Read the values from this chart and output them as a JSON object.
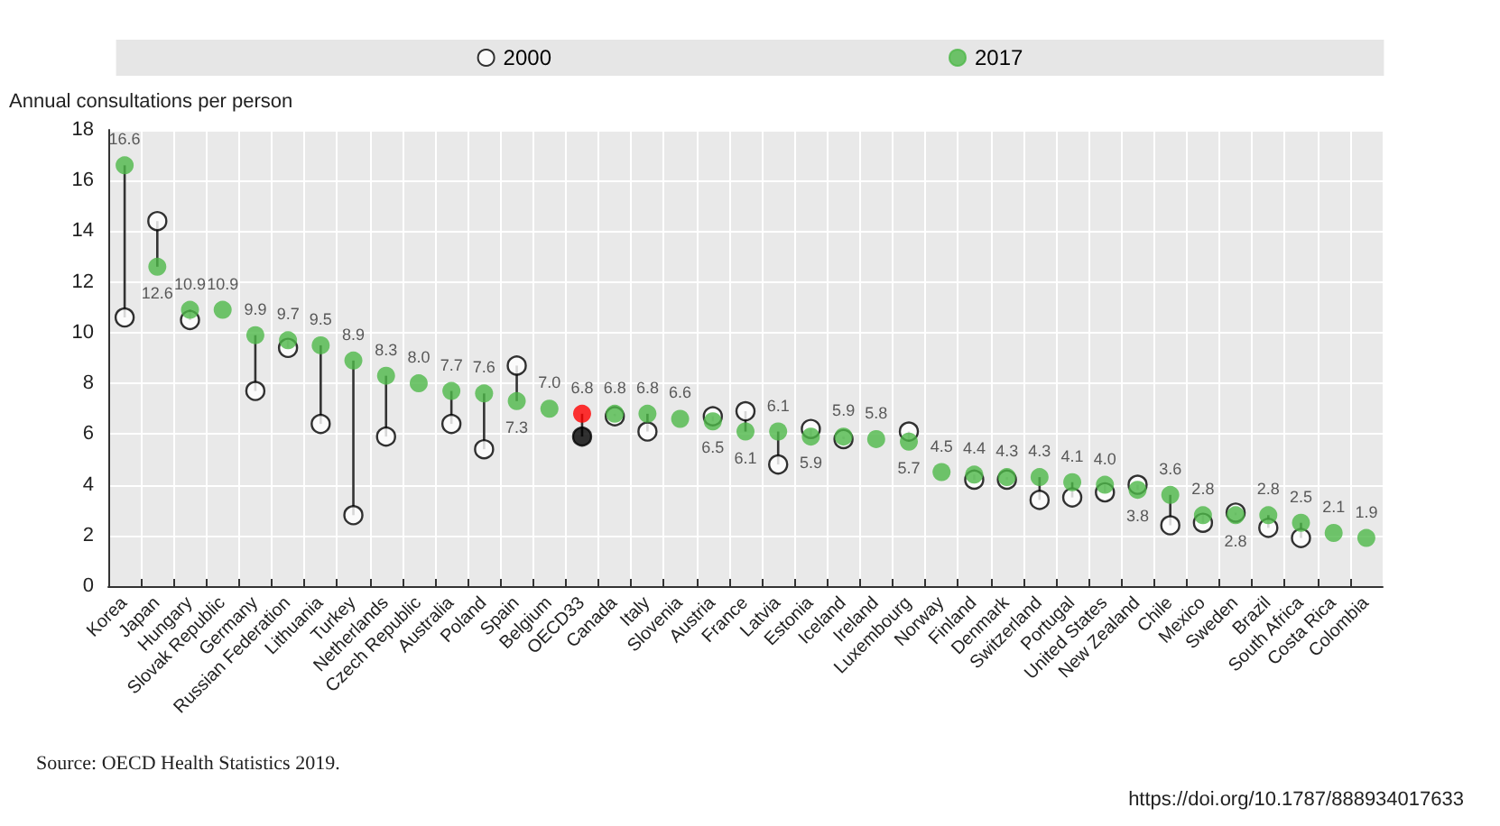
{
  "chart_data": {
    "type": "scatter",
    "ylabel": "Annual consultations per person",
    "categories": [
      "Korea",
      "Japan",
      "Hungary",
      "Slovak Republic",
      "Germany",
      "Russian Federation",
      "Lithuania",
      "Turkey",
      "Netherlands",
      "Czech Republic",
      "Australia",
      "Poland",
      "Spain",
      "Belgium",
      "OECD33",
      "Canada",
      "Italy",
      "Slovenia",
      "Austria",
      "France",
      "Latvia",
      "Estonia",
      "Iceland",
      "Ireland",
      "Luxembourg",
      "Norway",
      "Finland",
      "Denmark",
      "Switzerland",
      "Portugal",
      "United States",
      "New Zealand",
      "Chile",
      "Mexico",
      "Sweden",
      "Brazil",
      "South Africa",
      "Costa Rica",
      "Colombia"
    ],
    "series": [
      {
        "name": "2000",
        "color": "#ffffff",
        "colors": [
          "#ffffff",
          "#ffffff",
          "#ffffff",
          "#ffffff",
          "#ffffff",
          "#ffffff",
          "#ffffff",
          "#ffffff",
          "#ffffff",
          "#ffffff",
          "#ffffff",
          "#ffffff",
          "#ffffff",
          "#ffffff",
          "#000000",
          "#ffffff",
          "#ffffff",
          "#ffffff",
          "#ffffff",
          "#ffffff",
          "#ffffff",
          "#ffffff",
          "#ffffff",
          "#ffffff",
          "#ffffff",
          "#ffffff",
          "#ffffff",
          "#ffffff",
          "#ffffff",
          "#ffffff",
          "#ffffff",
          "#ffffff",
          "#ffffff",
          "#ffffff",
          "#ffffff",
          "#ffffff",
          "#ffffff",
          "#ffffff",
          "#ffffff"
        ],
        "values": [
          10.6,
          14.4,
          10.5,
          null,
          7.7,
          9.4,
          6.4,
          2.8,
          5.9,
          null,
          6.4,
          5.4,
          8.7,
          null,
          5.9,
          6.7,
          6.1,
          null,
          6.7,
          6.9,
          4.8,
          6.2,
          5.8,
          null,
          6.1,
          null,
          4.2,
          4.2,
          3.4,
          3.5,
          3.7,
          4.0,
          2.4,
          2.5,
          2.9,
          2.3,
          1.9,
          null,
          null
        ]
      },
      {
        "name": "2017",
        "color": "#4db848",
        "colors": [
          "#4db848",
          "#4db848",
          "#4db848",
          "#4db848",
          "#4db848",
          "#4db848",
          "#4db848",
          "#4db848",
          "#4db848",
          "#4db848",
          "#4db848",
          "#4db848",
          "#4db848",
          "#4db848",
          "#ff0000",
          "#4db848",
          "#4db848",
          "#4db848",
          "#4db848",
          "#4db848",
          "#4db848",
          "#4db848",
          "#4db848",
          "#4db848",
          "#4db848",
          "#4db848",
          "#4db848",
          "#4db848",
          "#4db848",
          "#4db848",
          "#4db848",
          "#4db848",
          "#4db848",
          "#4db848",
          "#4db848",
          "#4db848",
          "#4db848",
          "#4db848",
          "#4db848"
        ],
        "values": [
          16.6,
          12.6,
          10.9,
          10.9,
          9.9,
          9.7,
          9.5,
          8.9,
          8.3,
          8.0,
          7.7,
          7.6,
          7.3,
          7.0,
          6.8,
          6.8,
          6.8,
          6.6,
          6.5,
          6.1,
          6.1,
          5.9,
          5.9,
          5.8,
          5.7,
          4.5,
          4.4,
          4.3,
          4.3,
          4.1,
          4.0,
          3.8,
          3.6,
          2.8,
          2.8,
          2.8,
          2.5,
          2.1,
          1.9
        ],
        "value_labels": [
          "16.6",
          "12.6",
          "10.9",
          "10.9",
          "9.9",
          "9.7",
          "9.5",
          "8.9",
          "8.3",
          "8.0",
          "7.7",
          "7.6",
          "7.3",
          "7.0",
          "6.8",
          "6.8",
          "6.8",
          "6.6",
          "6.5",
          "6.1",
          "6.1",
          "5.9",
          "5.9",
          "5.8",
          "5.7",
          "4.5",
          "4.4",
          "4.3",
          "4.3",
          "4.1",
          "4.0",
          "3.8",
          "3.6",
          "2.8",
          "2.8",
          "2.8",
          "2.5",
          "2.1",
          "1.9"
        ]
      }
    ],
    "ylim": [
      0,
      18
    ],
    "yticks": [
      0,
      2,
      4,
      6,
      8,
      10,
      12,
      14,
      16,
      18
    ],
    "grid": true,
    "legend": "top",
    "marker": "circle",
    "annotations": [
      "Source: OECD Health Statistics 2019.",
      "https://doi.org/10.1787/888934017633"
    ]
  }
}
